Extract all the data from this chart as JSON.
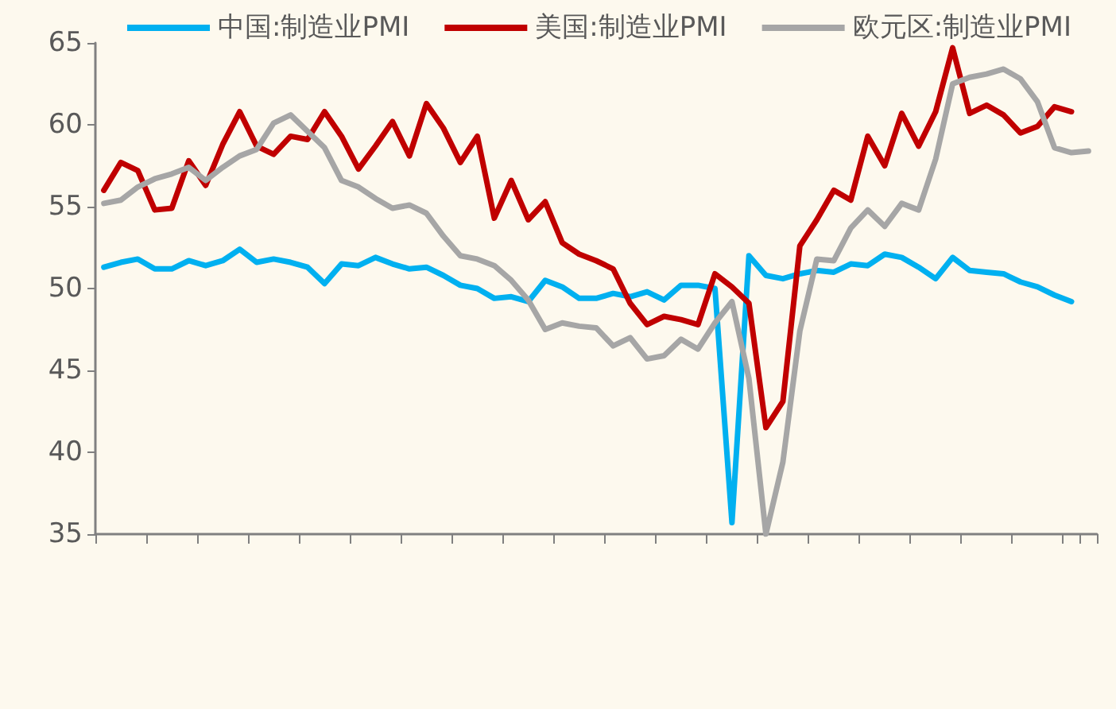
{
  "chart_data": {
    "type": "line",
    "categories": [
      null,
      null,
      null,
      null,
      null,
      null,
      null,
      null,
      null,
      null,
      null,
      null,
      null,
      null,
      null,
      null,
      null,
      null,
      null,
      null,
      null,
      null,
      null,
      null,
      null,
      null,
      null,
      null,
      null,
      null,
      null,
      null,
      null,
      null,
      null,
      null,
      null,
      null,
      null,
      null,
      null,
      null,
      null,
      null,
      null,
      null,
      null,
      null,
      null,
      null,
      null,
      null,
      null,
      null,
      null,
      null,
      null,
      null,
      null
    ],
    "series": [
      {
        "name": "中国:制造业PMI",
        "color": "#00b0f0",
        "values": [
          51.3,
          51.6,
          51.8,
          51.2,
          51.2,
          51.7,
          51.4,
          51.7,
          52.4,
          51.6,
          51.8,
          51.6,
          51.3,
          50.3,
          51.5,
          51.4,
          51.9,
          51.5,
          51.2,
          51.3,
          50.8,
          50.2,
          50.0,
          49.4,
          49.5,
          49.2,
          50.5,
          50.1,
          49.4,
          49.4,
          49.7,
          49.5,
          49.8,
          49.3,
          50.2,
          50.2,
          50.0,
          35.7,
          52.0,
          50.8,
          50.6,
          50.9,
          51.1,
          51.0,
          51.5,
          51.4,
          52.1,
          51.9,
          51.3,
          50.6,
          51.9,
          51.1,
          51.0,
          50.9,
          50.4,
          50.1,
          49.6,
          49.2,
          null
        ]
      },
      {
        "name": "美国:制造业PMI",
        "color": "#c00000",
        "values": [
          56.0,
          57.7,
          57.2,
          54.8,
          54.9,
          57.8,
          56.3,
          58.8,
          60.8,
          58.7,
          58.2,
          59.3,
          59.1,
          60.8,
          59.3,
          57.3,
          58.7,
          60.2,
          58.1,
          61.3,
          59.8,
          57.7,
          59.3,
          54.3,
          56.6,
          54.2,
          55.3,
          52.8,
          52.1,
          51.7,
          51.2,
          49.1,
          47.8,
          48.3,
          48.1,
          47.8,
          50.9,
          50.1,
          49.1,
          41.5,
          43.1,
          52.6,
          54.2,
          56.0,
          55.4,
          59.3,
          57.5,
          60.7,
          58.7,
          60.8,
          64.7,
          60.7,
          61.2,
          60.6,
          59.5,
          59.9,
          61.1,
          60.8,
          null
        ]
      },
      {
        "name": "欧元区:制造业PMI",
        "color": "#a6a6a6",
        "values": [
          55.2,
          55.4,
          56.2,
          56.7,
          57.0,
          57.4,
          56.6,
          57.4,
          58.1,
          58.5,
          60.1,
          60.6,
          59.6,
          58.6,
          56.6,
          56.2,
          55.5,
          54.9,
          55.1,
          54.6,
          53.2,
          52.0,
          51.8,
          51.4,
          50.5,
          49.3,
          47.5,
          47.9,
          47.7,
          47.6,
          46.5,
          47.0,
          45.7,
          45.9,
          46.9,
          46.3,
          47.9,
          49.2,
          44.5,
          35.0,
          39.4,
          47.4,
          51.8,
          51.7,
          53.7,
          54.8,
          53.8,
          55.2,
          54.8,
          57.9,
          62.5,
          62.9,
          63.1,
          63.4,
          62.8,
          61.4,
          58.6,
          58.3,
          58.4
        ]
      }
    ],
    "ylim": [
      35,
      65
    ],
    "yticks": [
      35,
      40,
      45,
      50,
      55,
      60,
      65
    ],
    "grid": false,
    "legend": "top",
    "marker": "none",
    "line_style": "solid",
    "tick_labels": "y"
  }
}
